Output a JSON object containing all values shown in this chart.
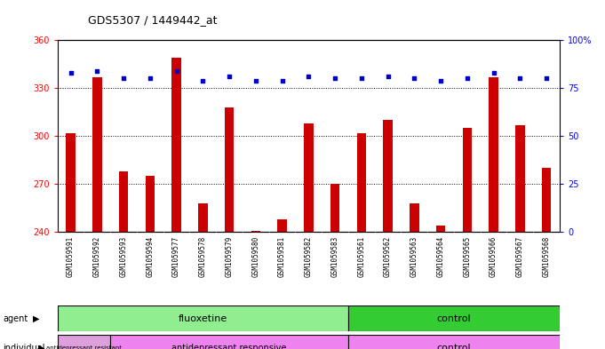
{
  "title": "GDS5307 / 1449442_at",
  "samples": [
    "GSM1059591",
    "GSM1059592",
    "GSM1059593",
    "GSM1059594",
    "GSM1059577",
    "GSM1059578",
    "GSM1059579",
    "GSM1059580",
    "GSM1059581",
    "GSM1059582",
    "GSM1059583",
    "GSM1059561",
    "GSM1059562",
    "GSM1059563",
    "GSM1059564",
    "GSM1059565",
    "GSM1059566",
    "GSM1059567",
    "GSM1059568"
  ],
  "counts": [
    302,
    337,
    278,
    275,
    349,
    258,
    318,
    241,
    248,
    308,
    270,
    302,
    310,
    258,
    244,
    305,
    337,
    307,
    280
  ],
  "percentile_ranks": [
    83,
    84,
    80,
    80,
    84,
    79,
    81,
    79,
    79,
    81,
    80,
    80,
    81,
    80,
    79,
    80,
    83,
    80,
    80
  ],
  "ylim_left": [
    240,
    360
  ],
  "ylim_right": [
    0,
    100
  ],
  "yticks_left": [
    240,
    270,
    300,
    330,
    360
  ],
  "yticks_right": [
    0,
    25,
    50,
    75,
    100
  ],
  "bar_color": "#CC0000",
  "dot_color": "#0000CC",
  "fluox_count": 11,
  "resist_count": 2,
  "resp_count": 9,
  "ctrl_count": 8,
  "fluox_color": "#90EE90",
  "ctrl_agent_color": "#33CC33",
  "resist_color": "#DDA0DD",
  "resp_color": "#EE82EE",
  "ctrl_indiv_color": "#EE82EE",
  "xtick_bg_color": "#C8C8C8",
  "plot_bg": "#FFFFFF"
}
